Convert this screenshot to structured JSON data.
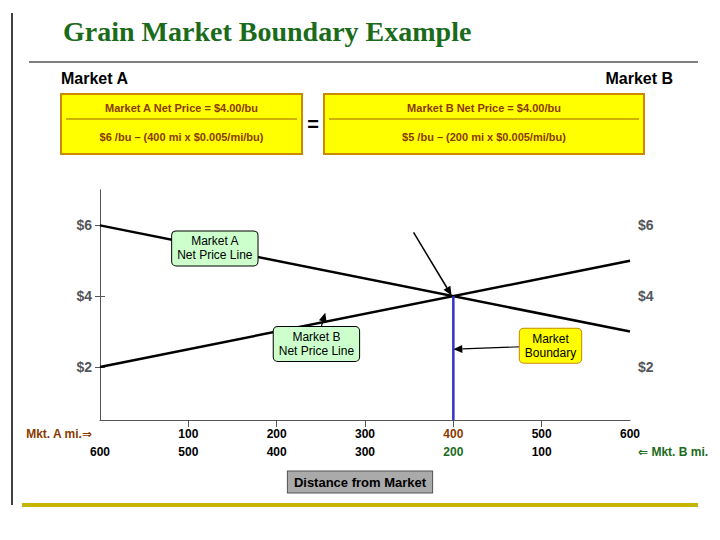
{
  "chart_data": {
    "type": "line",
    "title": "Grain Market Boundary Example",
    "title_color": "#1a6b1a",
    "header_labels": [
      "Market A",
      "Market B"
    ],
    "equations": [
      {
        "lines": [
          "Market A Net Price = $4.00/bu",
          "$6 /bu – (400 mi x $0.005/mi/bu)"
        ]
      },
      {
        "lines": [
          "Market B Net Price = $4.00/bu",
          "$5 /bu – (200 mi x $0.005/mi/bu)"
        ]
      }
    ],
    "equals_sign": "=",
    "box_color": "#ffff00",
    "box_border": "#cc8800",
    "equation_color": "#8b3a00",
    "series": [
      {
        "x": [
          0,
          600
        ],
        "values": [
          6.0,
          3.0
        ],
        "color": "#000000"
      },
      {
        "x": [
          0,
          600
        ],
        "values": [
          2.0,
          5.0
        ],
        "color": "#000000"
      },
      {
        "x": [
          400,
          400
        ],
        "values": [
          0.5,
          4.0
        ],
        "color": "#3333cc"
      }
    ],
    "xlim": [
      0,
      600
    ],
    "xticks": [
      100,
      200,
      300,
      400,
      500
    ],
    "ylim": [
      0.5,
      7.0
    ],
    "yticks": [
      {
        "value": 2,
        "label": "$2"
      },
      {
        "value": 4,
        "label": "$4"
      },
      {
        "value": 6,
        "label": "$6"
      }
    ],
    "y2lim": [
      0.5,
      7.0
    ],
    "y2ticks": [
      {
        "value": 2,
        "label": "$2"
      },
      {
        "value": 4,
        "label": "$4"
      },
      {
        "value": 6,
        "label": "$6"
      }
    ],
    "tick_labels": "y",
    "grid": false,
    "x_positions": [
      0,
      100,
      200,
      300,
      400,
      500,
      600
    ],
    "x_rows": [
      {
        "name": "Mkt. A mi.⇒",
        "color": "#8b3a00",
        "labels": [
          null,
          100,
          200,
          300,
          400,
          500,
          600
        ],
        "highlight": 400
      },
      {
        "name": "⇐ Mkt. B mi.",
        "color": "#1a6b1a",
        "labels": [
          600,
          500,
          400,
          300,
          200,
          100,
          null
        ],
        "highlight": 200
      }
    ],
    "x_label": "Distance from Market",
    "annotations": [
      {
        "text": "Market A\nNet Price Line",
        "x": 175,
        "y": 5.125,
        "text_x": 130,
        "text_y": 5.35,
        "color": "#ccffcc",
        "border_color": "#000000"
      },
      {
        "text": "Market B\nNet Price Line",
        "x": 255,
        "y": 3.53,
        "text_x": 245,
        "text_y": 2.65,
        "color": "#ccffcc",
        "border_color": "#000000"
      },
      {
        "text": "Market\nBoundary",
        "x": 400,
        "y": 2.5,
        "text_x": 510,
        "text_y": 2.6,
        "color": "#ffff00",
        "border_color": "#cc8800"
      }
    ],
    "arrows": [
      {
        "x": 398,
        "y": 4.02,
        "from_x": 355,
        "from_y": 5.8
      }
    ],
    "rule_color": "#c8b400"
  }
}
